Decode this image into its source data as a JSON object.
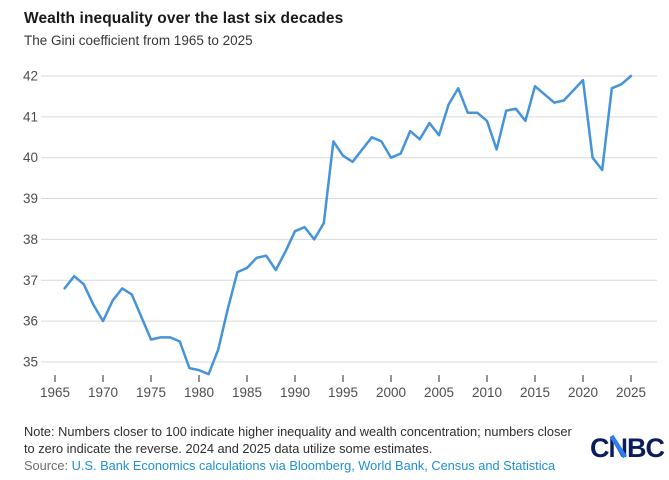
{
  "header": {
    "title": "Wealth inequality over the last six decades",
    "subtitle": "The Gini coefficient from 1965 to 2025"
  },
  "chart_data": {
    "type": "line",
    "title": "Wealth inequality over the last six decades",
    "subtitle": "The Gini coefficient from 1965 to 2025",
    "xlabel": "",
    "ylabel": "",
    "grid": true,
    "legend": false,
    "line_color": "#4593d9",
    "grid_color": "#d9d9d9",
    "axis_label_color": "#4d4d4d",
    "ylim": [
      34.5,
      42
    ],
    "xlim": [
      1965,
      2025
    ],
    "y_ticks": [
      35,
      36,
      37,
      38,
      39,
      40,
      41,
      42
    ],
    "x_ticks": [
      1965,
      1970,
      1975,
      1980,
      1985,
      1990,
      1995,
      2000,
      2005,
      2010,
      2015,
      2020,
      2025
    ],
    "series": [
      {
        "name": "Gini coefficient",
        "x": [
          1966,
          1967,
          1968,
          1969,
          1970,
          1971,
          1972,
          1973,
          1974,
          1975,
          1976,
          1977,
          1978,
          1979,
          1980,
          1981,
          1982,
          1983,
          1984,
          1985,
          1986,
          1987,
          1988,
          1989,
          1990,
          1991,
          1992,
          1993,
          1994,
          1995,
          1996,
          1997,
          1998,
          1999,
          2000,
          2001,
          2002,
          2003,
          2004,
          2005,
          2006,
          2007,
          2008,
          2009,
          2010,
          2011,
          2012,
          2013,
          2014,
          2015,
          2016,
          2017,
          2018,
          2019,
          2020,
          2021,
          2022,
          2023,
          2024,
          2025
        ],
        "values": [
          36.8,
          37.1,
          36.9,
          36.4,
          36.0,
          36.5,
          36.8,
          36.65,
          36.1,
          35.55,
          35.6,
          35.6,
          35.5,
          34.85,
          34.8,
          34.7,
          35.3,
          36.3,
          37.2,
          37.3,
          37.55,
          37.6,
          37.25,
          37.7,
          38.2,
          38.3,
          38.0,
          38.4,
          40.4,
          40.05,
          39.9,
          40.2,
          40.5,
          40.4,
          40.0,
          40.1,
          40.65,
          40.45,
          40.85,
          40.55,
          41.3,
          41.7,
          41.1,
          41.1,
          40.9,
          40.2,
          41.15,
          41.2,
          40.9,
          41.75,
          41.55,
          41.35,
          41.4,
          41.65,
          41.9,
          40.0,
          39.7,
          41.7,
          41.8,
          42.0
        ]
      }
    ]
  },
  "footer": {
    "note_line1": "Note: Numbers closer to 100 indicate higher inequality and wealth concentration; numbers closer",
    "note_line2": "to zero indicate the reverse. 2024 and 2025 data utilize some estimates.",
    "source_prefix": "Source: ",
    "source_text": "U.S. Bank Economics calculations via Bloomberg, World Bank, Census and Statistica"
  },
  "logo": {
    "text": "CNBC",
    "navy": "#0a1c5c",
    "blue": "#2d7ff0"
  }
}
